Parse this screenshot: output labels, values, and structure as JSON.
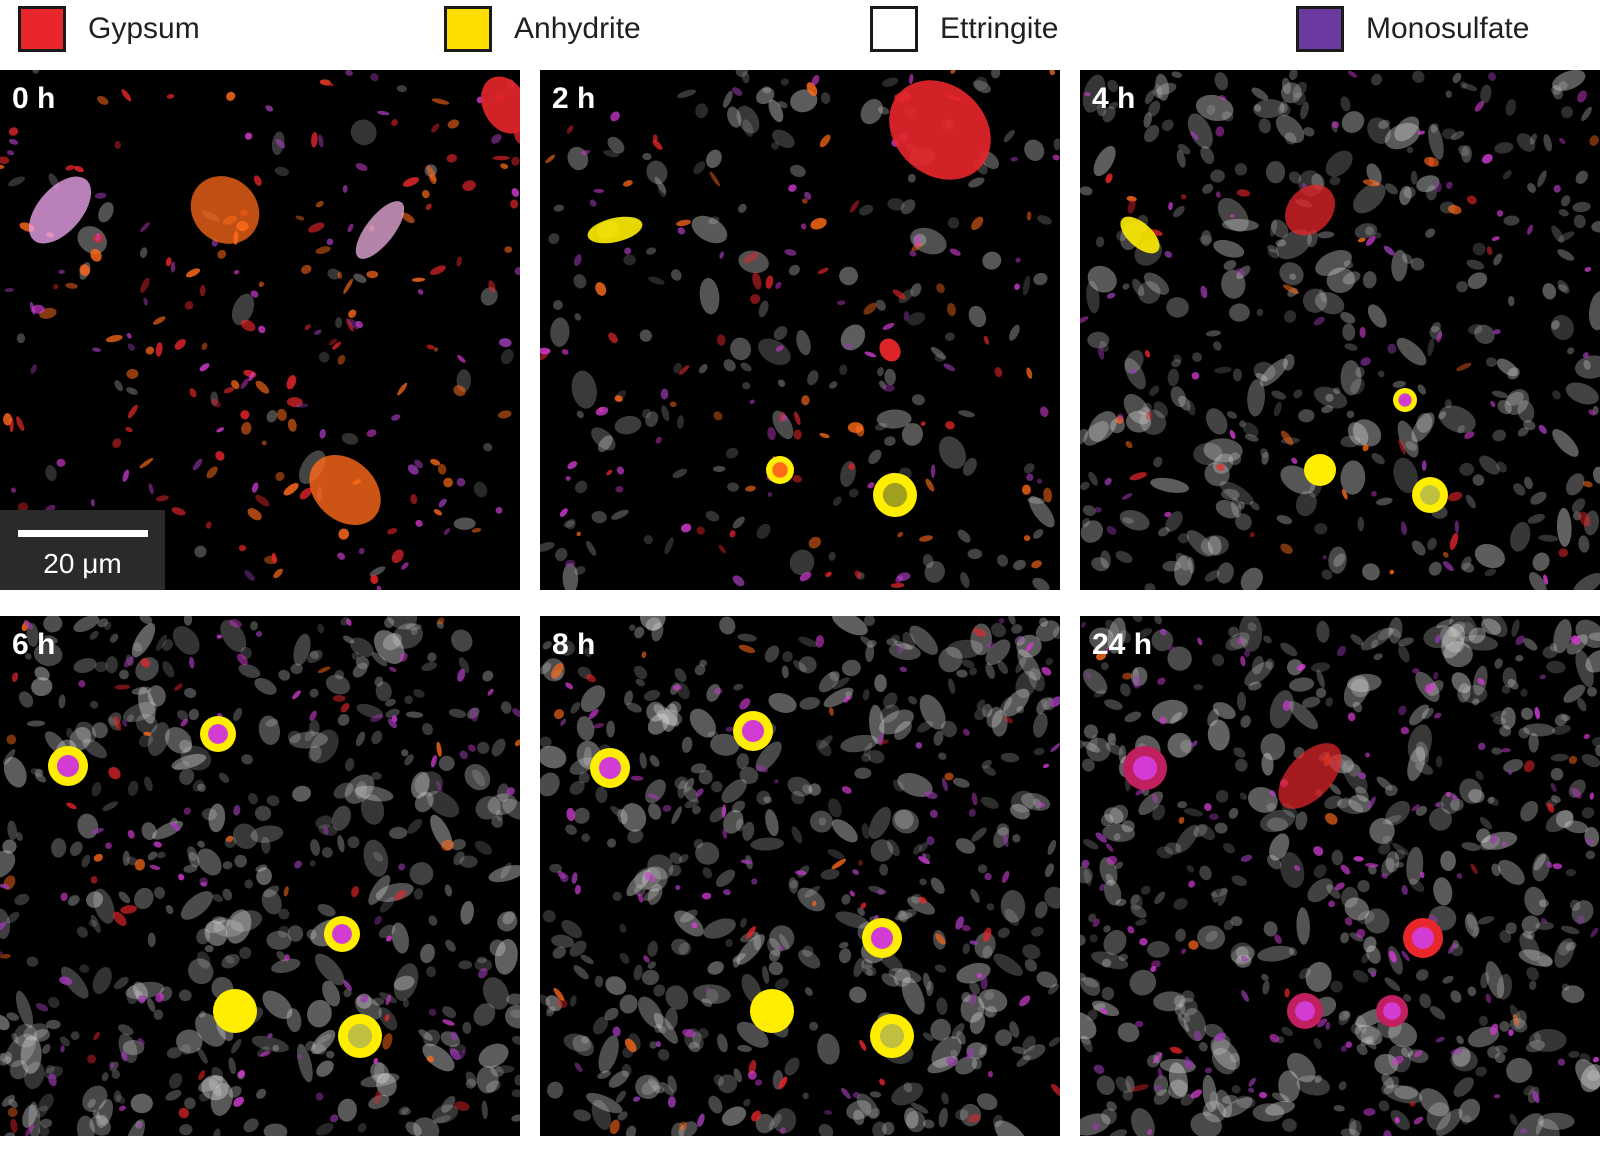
{
  "legend": [
    {
      "label": "Gypsum",
      "color": "#e8262b"
    },
    {
      "label": "Anhydrite",
      "color": "#ffdd00"
    },
    {
      "label": "Ettringite",
      "color": "#ffffff"
    },
    {
      "label": "Monosulfate",
      "color": "#6a3aa0"
    }
  ],
  "panels": [
    {
      "label": "0 h"
    },
    {
      "label": "2 h"
    },
    {
      "label": "4 h"
    },
    {
      "label": "6 h"
    },
    {
      "label": "8 h"
    },
    {
      "label": "24 h"
    }
  ],
  "scale_bar": {
    "label": "20 μm"
  }
}
